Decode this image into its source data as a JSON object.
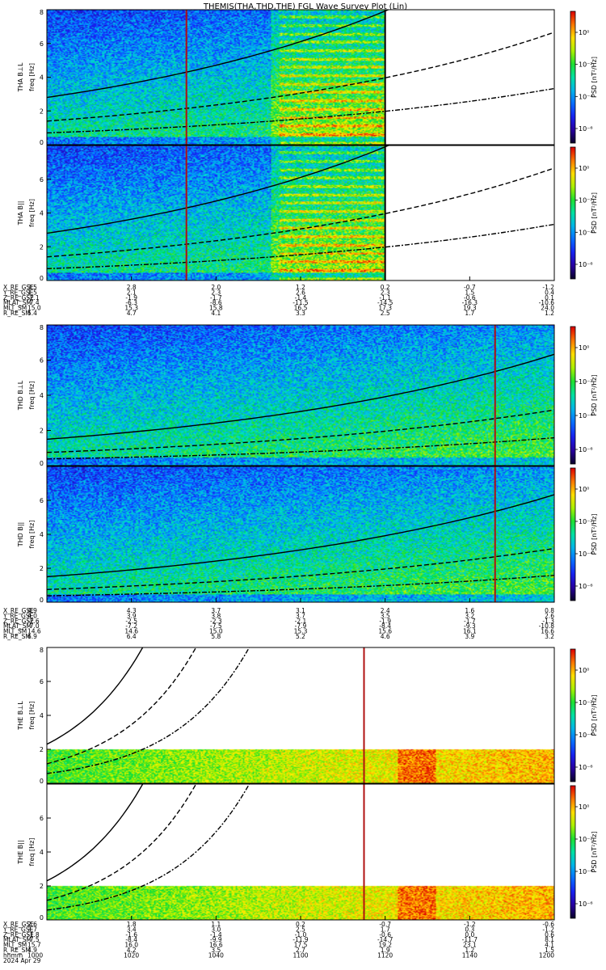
{
  "chart_data": {
    "type": "heatmap",
    "title": "THEMIS(THA,THD,THE) FGL Wave Survey Plot (Lin)",
    "colorbar_label": "PSD [nT²/Hz]",
    "colorbar_ticks": [
      "10⁰",
      "10⁻²",
      "10⁻⁴",
      "10⁻⁶"
    ],
    "ylim": [
      0,
      8
    ],
    "yticks": [
      "0",
      "2",
      "4",
      "6",
      "8"
    ],
    "ylabel_unit": "freq [Hz]",
    "x_axis": {
      "label": "hhmm",
      "date": "2024 Apr 29",
      "ticks": [
        "1000",
        "1020",
        "1040",
        "1100",
        "1120",
        "1140",
        "1200"
      ]
    },
    "panels": [
      {
        "probe": "THA",
        "component": "B⊥L",
        "ylabel": "THA B⊥L",
        "data_end_hhmm": "1120",
        "marker_hhmm": "1033"
      },
      {
        "probe": "THA",
        "component": "B||",
        "ylabel": "THA B||",
        "data_end_hhmm": "1120",
        "marker_hhmm": "1033"
      },
      {
        "probe": "THD",
        "component": "B⊥L",
        "ylabel": "THD B⊥L",
        "data_end_hhmm": "1200",
        "marker_hhmm": "1146"
      },
      {
        "probe": "THD",
        "component": "B||",
        "ylabel": "THD B||",
        "data_end_hhmm": "1200",
        "marker_hhmm": "1146"
      },
      {
        "probe": "THE",
        "component": "B⊥L",
        "ylabel": "THE B⊥L",
        "data_end_hhmm": "1200",
        "marker_hhmm": "1115",
        "freq_max": 2
      },
      {
        "probe": "THE",
        "component": "B||",
        "ylabel": "THE B||",
        "data_end_hhmm": "1200",
        "marker_hhmm": "1115",
        "freq_max": 2
      }
    ],
    "ephemeris": [
      {
        "probe": "THA",
        "labels": [
          "X_RE_GSE",
          "Y_RE_GSE",
          "Z_RE_GSE",
          "MLAT_SM",
          "MLT_SM",
          "R_RE_SM"
        ],
        "columns": [
          [
            "3.5",
            "1.5",
            "-2.1",
            "-7.4",
            "15.0",
            "5.4"
          ],
          [
            "2.8",
            "2.1",
            "-1.9",
            "-6.3",
            "15.3",
            "4.7"
          ],
          [
            "2.0",
            "2.3",
            "-1.7",
            "-8.6",
            "15.8",
            "4.1"
          ],
          [
            "1.2",
            "2.6",
            "-1.4",
            "-11.5",
            "16.5",
            "3.3"
          ],
          [
            "0.2",
            "2.3",
            "-1.1",
            "-14.5",
            "17.3",
            "2.5"
          ],
          [
            "-0.7",
            "1.5",
            "-0.6",
            "-16.3",
            "19.3",
            "1.7"
          ],
          [
            "-1.2",
            "0.4",
            "0.1",
            "-10.6",
            "24.0",
            "1.2"
          ]
        ]
      },
      {
        "probe": "THD",
        "labels": [
          "X_RE_GSE",
          "Y_RE_GSE",
          "Z_RE_GSE",
          "MLAT_SM",
          "MLT_SM",
          "R_RE_SM"
        ],
        "columns": [
          [
            "4.9",
            "4.0",
            "-2.6",
            "-7.0",
            "14.6",
            "6.9"
          ],
          [
            "4.3",
            "3.9",
            "-2.5",
            "-7.2",
            "14.6",
            "6.4"
          ],
          [
            "3.7",
            "3.8",
            "-2.3",
            "-7.5",
            "15.0",
            "5.8"
          ],
          [
            "3.1",
            "3.7",
            "-2.1",
            "-7.9",
            "15.3",
            "5.2"
          ],
          [
            "2.4",
            "3.5",
            "-1.9",
            "-8.4",
            "15.6",
            "4.6"
          ],
          [
            "1.6",
            "3.2",
            "-1.7",
            "-9.3",
            "16.1",
            "3.9"
          ],
          [
            "0.8",
            "2.6",
            "-1.3",
            "-10.8",
            "16.6",
            "3.2"
          ]
        ]
      },
      {
        "probe": "THE",
        "labels": [
          "X_RE_GSE",
          "Y_RE_GSE",
          "Z_RE_GSE",
          "MLAT_SM",
          "MLT_SM",
          "R_RE_SM"
        ],
        "columns": [
          [
            "2.6",
            "3.7",
            "-1.8",
            "-7.5",
            "15.7",
            "4.9"
          ],
          [
            "1.8",
            "3.4",
            "-1.6",
            "-8.4",
            "16.0",
            "4.2"
          ],
          [
            "1.1",
            "3.0",
            "-1.4",
            "-9.9",
            "16.6",
            "3.5"
          ],
          [
            "0.2",
            "2.5",
            "-1.0",
            "-11.9",
            "17.5",
            "2.7"
          ],
          [
            "-0.7",
            "1.7",
            "-0.6",
            "-14.7",
            "19.2",
            "1.9"
          ],
          [
            "-1.2",
            "0.3",
            "0.0",
            "-11.7",
            "23.1",
            "1.2"
          ],
          [
            "-0.6",
            "-1.2",
            "0.6",
            "8.1",
            "4.1",
            "1.5"
          ]
        ]
      }
    ]
  }
}
